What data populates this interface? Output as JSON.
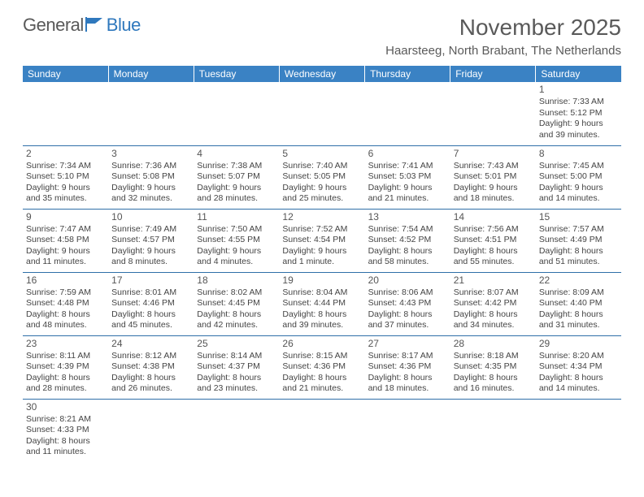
{
  "logo": {
    "text1": "General",
    "text2": "Blue"
  },
  "title": "November 2025",
  "location": "Haarsteeg, North Brabant, The Netherlands",
  "colors": {
    "header_bg": "#3a82c4",
    "header_text": "#ffffff",
    "row_border": "#2f6fa8",
    "text": "#444444",
    "title_text": "#5a5a5a",
    "logo_gray": "#595959",
    "logo_blue": "#2f78bd"
  },
  "fonts": {
    "title_size_pt": 21,
    "location_size_pt": 11,
    "dayhead_size_pt": 9,
    "cell_size_pt": 8
  },
  "day_headers": [
    "Sunday",
    "Monday",
    "Tuesday",
    "Wednesday",
    "Thursday",
    "Friday",
    "Saturday"
  ],
  "weeks": [
    [
      null,
      null,
      null,
      null,
      null,
      null,
      {
        "n": "1",
        "sr": "7:33 AM",
        "ss": "5:12 PM",
        "dl": "9 hours and 39 minutes."
      }
    ],
    [
      {
        "n": "2",
        "sr": "7:34 AM",
        "ss": "5:10 PM",
        "dl": "9 hours and 35 minutes."
      },
      {
        "n": "3",
        "sr": "7:36 AM",
        "ss": "5:08 PM",
        "dl": "9 hours and 32 minutes."
      },
      {
        "n": "4",
        "sr": "7:38 AM",
        "ss": "5:07 PM",
        "dl": "9 hours and 28 minutes."
      },
      {
        "n": "5",
        "sr": "7:40 AM",
        "ss": "5:05 PM",
        "dl": "9 hours and 25 minutes."
      },
      {
        "n": "6",
        "sr": "7:41 AM",
        "ss": "5:03 PM",
        "dl": "9 hours and 21 minutes."
      },
      {
        "n": "7",
        "sr": "7:43 AM",
        "ss": "5:01 PM",
        "dl": "9 hours and 18 minutes."
      },
      {
        "n": "8",
        "sr": "7:45 AM",
        "ss": "5:00 PM",
        "dl": "9 hours and 14 minutes."
      }
    ],
    [
      {
        "n": "9",
        "sr": "7:47 AM",
        "ss": "4:58 PM",
        "dl": "9 hours and 11 minutes."
      },
      {
        "n": "10",
        "sr": "7:49 AM",
        "ss": "4:57 PM",
        "dl": "9 hours and 8 minutes."
      },
      {
        "n": "11",
        "sr": "7:50 AM",
        "ss": "4:55 PM",
        "dl": "9 hours and 4 minutes."
      },
      {
        "n": "12",
        "sr": "7:52 AM",
        "ss": "4:54 PM",
        "dl": "9 hours and 1 minute."
      },
      {
        "n": "13",
        "sr": "7:54 AM",
        "ss": "4:52 PM",
        "dl": "8 hours and 58 minutes."
      },
      {
        "n": "14",
        "sr": "7:56 AM",
        "ss": "4:51 PM",
        "dl": "8 hours and 55 minutes."
      },
      {
        "n": "15",
        "sr": "7:57 AM",
        "ss": "4:49 PM",
        "dl": "8 hours and 51 minutes."
      }
    ],
    [
      {
        "n": "16",
        "sr": "7:59 AM",
        "ss": "4:48 PM",
        "dl": "8 hours and 48 minutes."
      },
      {
        "n": "17",
        "sr": "8:01 AM",
        "ss": "4:46 PM",
        "dl": "8 hours and 45 minutes."
      },
      {
        "n": "18",
        "sr": "8:02 AM",
        "ss": "4:45 PM",
        "dl": "8 hours and 42 minutes."
      },
      {
        "n": "19",
        "sr": "8:04 AM",
        "ss": "4:44 PM",
        "dl": "8 hours and 39 minutes."
      },
      {
        "n": "20",
        "sr": "8:06 AM",
        "ss": "4:43 PM",
        "dl": "8 hours and 37 minutes."
      },
      {
        "n": "21",
        "sr": "8:07 AM",
        "ss": "4:42 PM",
        "dl": "8 hours and 34 minutes."
      },
      {
        "n": "22",
        "sr": "8:09 AM",
        "ss": "4:40 PM",
        "dl": "8 hours and 31 minutes."
      }
    ],
    [
      {
        "n": "23",
        "sr": "8:11 AM",
        "ss": "4:39 PM",
        "dl": "8 hours and 28 minutes."
      },
      {
        "n": "24",
        "sr": "8:12 AM",
        "ss": "4:38 PM",
        "dl": "8 hours and 26 minutes."
      },
      {
        "n": "25",
        "sr": "8:14 AM",
        "ss": "4:37 PM",
        "dl": "8 hours and 23 minutes."
      },
      {
        "n": "26",
        "sr": "8:15 AM",
        "ss": "4:36 PM",
        "dl": "8 hours and 21 minutes."
      },
      {
        "n": "27",
        "sr": "8:17 AM",
        "ss": "4:36 PM",
        "dl": "8 hours and 18 minutes."
      },
      {
        "n": "28",
        "sr": "8:18 AM",
        "ss": "4:35 PM",
        "dl": "8 hours and 16 minutes."
      },
      {
        "n": "29",
        "sr": "8:20 AM",
        "ss": "4:34 PM",
        "dl": "8 hours and 14 minutes."
      }
    ],
    [
      {
        "n": "30",
        "sr": "8:21 AM",
        "ss": "4:33 PM",
        "dl": "8 hours and 11 minutes."
      },
      null,
      null,
      null,
      null,
      null,
      null
    ]
  ],
  "labels": {
    "sunrise": "Sunrise: ",
    "sunset": "Sunset: ",
    "daylight": "Daylight: "
  }
}
